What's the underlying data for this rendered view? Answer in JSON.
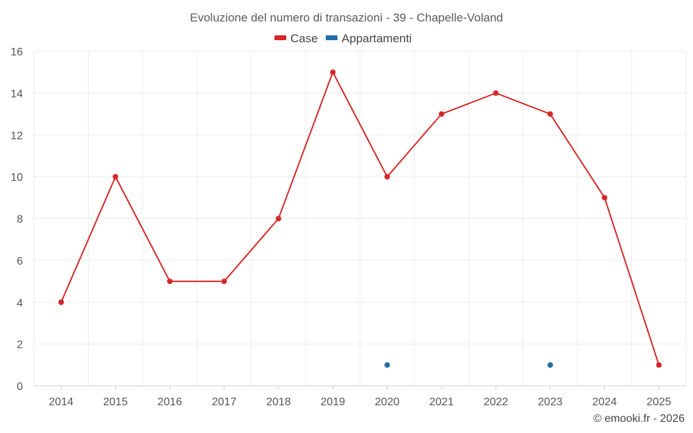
{
  "chart_data": {
    "type": "line",
    "title": "Evoluzione del numero di transazioni - 39 - Chapelle-Voland",
    "categories": [
      "2014",
      "2015",
      "2016",
      "2017",
      "2018",
      "2019",
      "2020",
      "2021",
      "2022",
      "2023",
      "2024",
      "2025"
    ],
    "ylim": [
      0,
      16
    ],
    "yticks": [
      0,
      2,
      4,
      6,
      8,
      10,
      12,
      14,
      16
    ],
    "grid": true,
    "legend_position": "top-center",
    "series": [
      {
        "name": "Case",
        "color": "#d62728",
        "values": [
          4,
          10,
          5,
          5,
          8,
          15,
          10,
          13,
          14,
          13,
          9,
          1
        ]
      },
      {
        "name": "Appartamenti",
        "color": "#1f6fa8",
        "values": [
          null,
          null,
          null,
          null,
          null,
          null,
          1,
          null,
          null,
          1,
          null,
          null
        ]
      }
    ]
  },
  "credit": "© emooki.fr - 2026"
}
